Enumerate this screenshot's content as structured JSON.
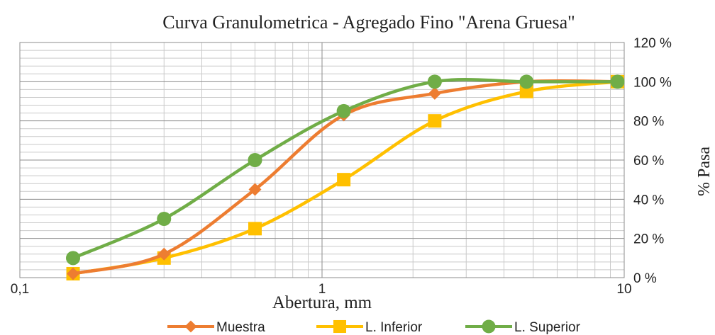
{
  "chart_data": {
    "type": "line",
    "title": "Curva Granulometrica - Agregado Fino \"Arena Gruesa\"",
    "xlabel": "Abertura, mm",
    "ylabel": "% Pasa",
    "x_scale": "log",
    "xlim": [
      0.1,
      10
    ],
    "ylim": [
      0,
      120
    ],
    "grid": true,
    "legend_position": "bottom",
    "x_ticks": [
      {
        "value": 0.1,
        "label": "0,1"
      },
      {
        "value": 1,
        "label": "1"
      },
      {
        "value": 10,
        "label": "10"
      }
    ],
    "y_ticks": [
      {
        "value": 0,
        "label": "0 %"
      },
      {
        "value": 20,
        "label": "20 %"
      },
      {
        "value": 40,
        "label": "40 %"
      },
      {
        "value": 60,
        "label": "60 %"
      },
      {
        "value": 80,
        "label": "80 %"
      },
      {
        "value": 100,
        "label": "100 %"
      },
      {
        "value": 120,
        "label": "120 %"
      }
    ],
    "series": [
      {
        "name": "Muestra",
        "color": "#ED7D31",
        "marker": "diamond",
        "points": [
          [
            0.15,
            2
          ],
          [
            0.3,
            12
          ],
          [
            0.6,
            45
          ],
          [
            1.18,
            83
          ],
          [
            2.36,
            94
          ],
          [
            4.75,
            100
          ],
          [
            9.5,
            100
          ]
        ]
      },
      {
        "name": "L. Inferior",
        "color": "#FFC000",
        "marker": "square",
        "points": [
          [
            0.15,
            2
          ],
          [
            0.3,
            10
          ],
          [
            0.6,
            25
          ],
          [
            1.18,
            50
          ],
          [
            2.36,
            80
          ],
          [
            4.75,
            95
          ],
          [
            9.5,
            100
          ]
        ]
      },
      {
        "name": "L. Superior",
        "color": "#70AD47",
        "marker": "circle",
        "points": [
          [
            0.15,
            10
          ],
          [
            0.3,
            30
          ],
          [
            0.6,
            60
          ],
          [
            1.18,
            85
          ],
          [
            2.36,
            100
          ],
          [
            4.75,
            100
          ],
          [
            9.5,
            100
          ]
        ]
      }
    ]
  }
}
